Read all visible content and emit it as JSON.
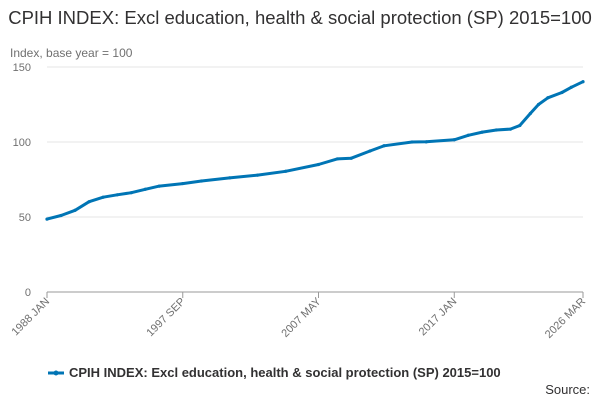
{
  "chart_data": {
    "type": "line",
    "title": "CPIH INDEX: Excl education, health & social protection (SP) 2015=100",
    "ylabel": "Index, base year = 100",
    "ylim": [
      0,
      150
    ],
    "yticks": [
      0,
      50,
      100,
      150
    ],
    "xticks": [
      "1988 JAN",
      "1997 SEP",
      "2007 MAY",
      "2017 JAN",
      "2026 MAR"
    ],
    "grid": true,
    "legend_position": "bottom",
    "series": [
      {
        "name": "CPIH INDEX: Excl education, health & social protection (SP) 2015=100",
        "color": "#0075b5",
        "points": [
          [
            "1988 JAN",
            48.6
          ],
          [
            "1989 JAN",
            51.0
          ],
          [
            "1990 JAN",
            54.5
          ],
          [
            "1991 JAN",
            60.2
          ],
          [
            "1992 JAN",
            63.2
          ],
          [
            "1993 JAN",
            64.8
          ],
          [
            "1994 JAN",
            66.2
          ],
          [
            "1995 JAN",
            68.5
          ],
          [
            "1996 JAN",
            70.6
          ],
          [
            "1997 SEP",
            72.3
          ],
          [
            "1999 JAN",
            74.0
          ],
          [
            "2001 JAN",
            76.1
          ],
          [
            "2003 JAN",
            77.9
          ],
          [
            "2005 JAN",
            80.5
          ],
          [
            "2007 MAY",
            85.0
          ],
          [
            "2008 SEP",
            88.7
          ],
          [
            "2009 SEP",
            89.2
          ],
          [
            "2011 JAN",
            94.0
          ],
          [
            "2012 JAN",
            97.5
          ],
          [
            "2014 JAN",
            100.0
          ],
          [
            "2015 JAN",
            100.1
          ],
          [
            "2017 JAN",
            101.5
          ],
          [
            "2018 JAN",
            104.5
          ],
          [
            "2019 JAN",
            106.6
          ],
          [
            "2020 JAN",
            108.0
          ],
          [
            "2021 JAN",
            108.6
          ],
          [
            "2021 SEP",
            111.0
          ],
          [
            "2022 JUN",
            119.0
          ],
          [
            "2023 JAN",
            125.0
          ],
          [
            "2023 SEP",
            129.5
          ],
          [
            "2024 SEP",
            133.0
          ],
          [
            "2025 MAY",
            136.5
          ],
          [
            "2026 MAR",
            140.2
          ]
        ]
      }
    ]
  },
  "footer": {
    "source_label": "Source:"
  }
}
